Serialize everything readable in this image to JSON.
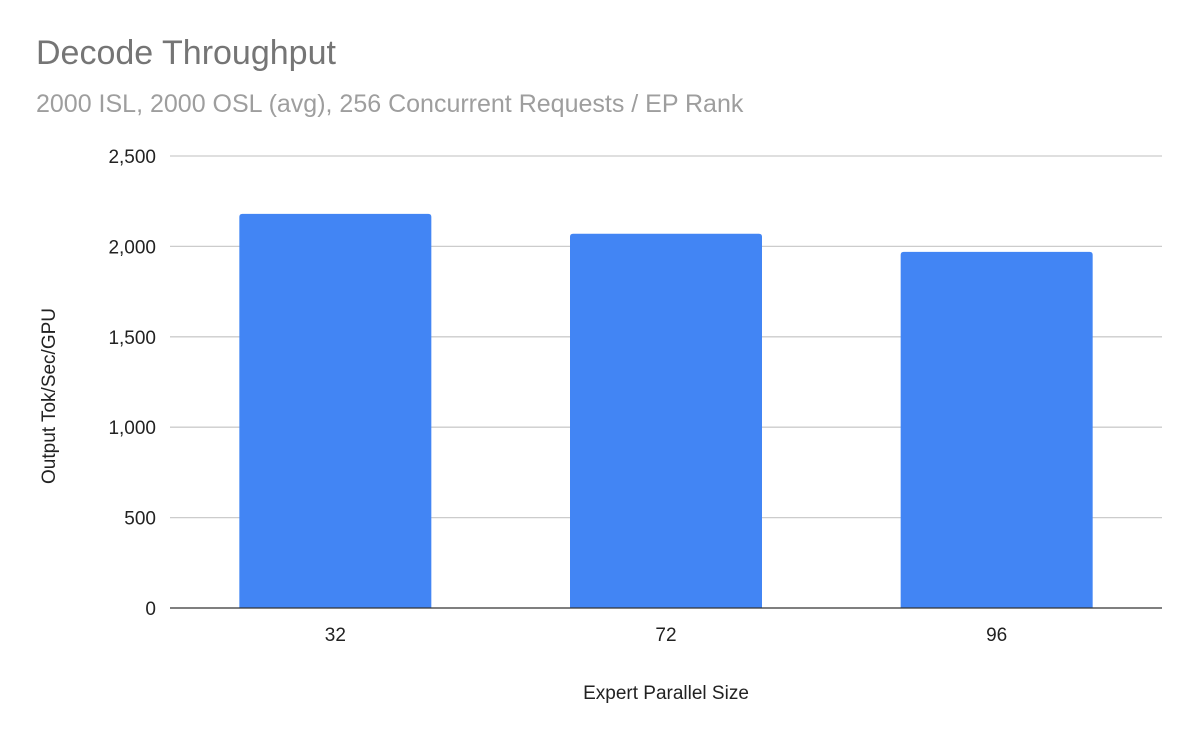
{
  "chart_data": {
    "type": "bar",
    "title": "Decode Throughput",
    "subtitle": "2000 ISL, 2000 OSL (avg), 256 Concurrent Requests / EP Rank",
    "xlabel": "Expert Parallel Size",
    "ylabel": "Output Tok/Sec/GPU",
    "categories": [
      "32",
      "72",
      "96"
    ],
    "values": [
      2180,
      2070,
      1970
    ],
    "ylim": [
      0,
      2500
    ],
    "yticks": [
      0,
      500,
      1000,
      1500,
      2000,
      2500
    ],
    "ytick_labels": [
      "0",
      "500",
      "1,000",
      "1,500",
      "2,000",
      "2,500"
    ],
    "grid": true,
    "legend": "none",
    "bar_color": "#4285f4"
  }
}
